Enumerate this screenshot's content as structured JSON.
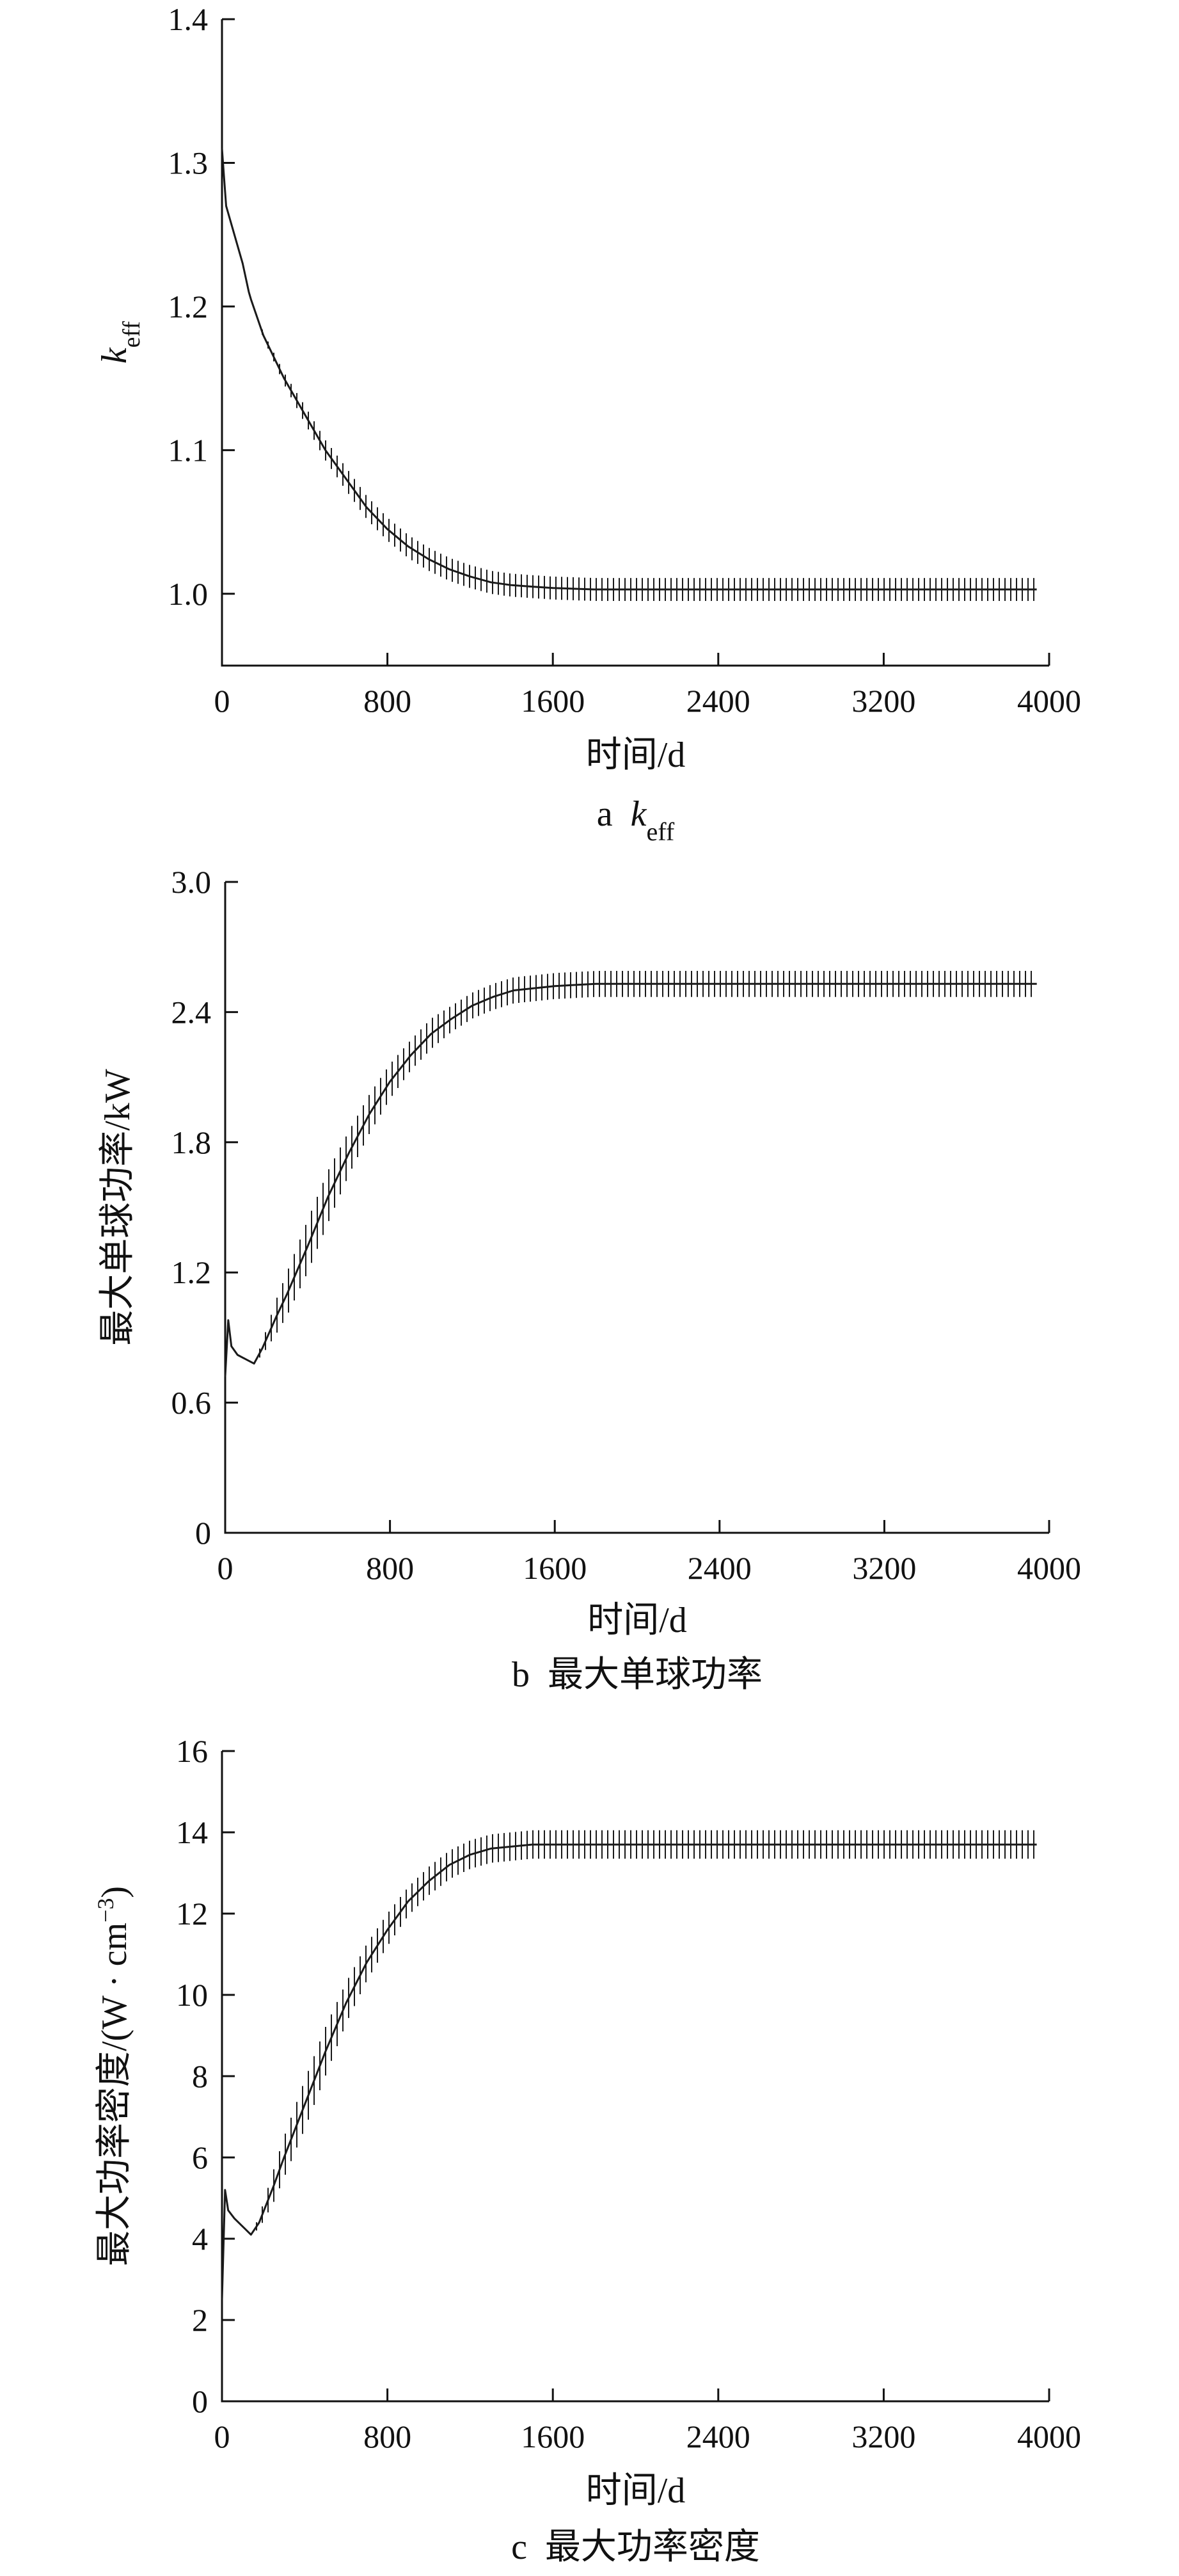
{
  "chart_data": [
    {
      "type": "line",
      "panel": "a",
      "caption_letter": "a",
      "caption_text": "k",
      "caption_sub": "eff",
      "ylabel_main": "k",
      "ylabel_sub": "eff",
      "ylabel_suffix": "",
      "ylabel_sup": "",
      "ylabel_end": "",
      "xlabel": "时间/d",
      "xlim": [
        0,
        4000
      ],
      "ylim": [
        0.95,
        1.4
      ],
      "xticks": [
        0,
        800,
        1600,
        2400,
        3200,
        4000
      ],
      "yticks": [
        1.0,
        1.1,
        1.2,
        1.3,
        1.4
      ],
      "ytick_labels": [
        "1.0",
        "1.1",
        "1.2",
        "1.3",
        "1.4"
      ],
      "xtick_labels": [
        "0",
        "800",
        "1600",
        "2400",
        "3200",
        "4000"
      ],
      "series": [
        {
          "x": [
            0,
            10,
            20,
            60,
            100,
            130,
            140,
            200,
            300,
            400,
            500,
            600,
            700,
            800,
            900,
            1000,
            1100,
            1200,
            1300,
            1400,
            1500,
            1600,
            1800,
            2000,
            2400,
            2800,
            3200,
            3600,
            3940
          ],
          "y": [
            1.31,
            1.29,
            1.27,
            1.25,
            1.23,
            1.21,
            1.205,
            1.18,
            1.15,
            1.125,
            1.1,
            1.08,
            1.06,
            1.045,
            1.033,
            1.024,
            1.017,
            1.012,
            1.008,
            1.006,
            1.005,
            1.004,
            1.003,
            1.003,
            1.003,
            1.003,
            1.003,
            1.003,
            1.003
          ],
          "band": [
            0,
            0,
            0,
            0,
            0,
            0,
            0,
            0.002,
            0.004,
            0.006,
            0.007,
            0.008,
            0.008,
            0.008,
            0.008,
            0.008,
            0.008,
            0.008,
            0.008,
            0.008,
            0.008,
            0.008,
            0.008,
            0.008,
            0.008,
            0.008,
            0.008,
            0.008,
            0.008
          ]
        }
      ]
    },
    {
      "type": "line",
      "panel": "b",
      "caption_letter": "b",
      "caption_text": "最大单球功率",
      "caption_sub": "",
      "ylabel_main": "最大单球功率/kW",
      "ylabel_sub": "",
      "ylabel_suffix": "",
      "ylabel_sup": "",
      "ylabel_end": "",
      "xlabel": "时间/d",
      "xlim": [
        0,
        4000
      ],
      "ylim": [
        0,
        3.0
      ],
      "xticks": [
        0,
        800,
        1600,
        2400,
        3200,
        4000
      ],
      "yticks": [
        0,
        0.6,
        1.2,
        1.8,
        2.4,
        3.0
      ],
      "ytick_labels": [
        "0",
        "0.6",
        "1.2",
        "1.8",
        "2.4",
        "3.0"
      ],
      "xtick_labels": [
        "0",
        "800",
        "1600",
        "2400",
        "3200",
        "4000"
      ],
      "series": [
        {
          "x": [
            0,
            15,
            30,
            60,
            100,
            140,
            180,
            250,
            300,
            400,
            500,
            600,
            700,
            800,
            900,
            1000,
            1100,
            1200,
            1300,
            1400,
            1500,
            1600,
            1800,
            2000,
            2400,
            2800,
            3200,
            3600,
            3940
          ],
          "y": [
            0.72,
            0.98,
            0.86,
            0.82,
            0.8,
            0.78,
            0.85,
            1.0,
            1.1,
            1.32,
            1.55,
            1.75,
            1.93,
            2.08,
            2.2,
            2.3,
            2.37,
            2.43,
            2.47,
            2.5,
            2.51,
            2.52,
            2.53,
            2.53,
            2.53,
            2.53,
            2.53,
            2.53,
            2.53
          ],
          "band": [
            0,
            0,
            0,
            0,
            0,
            0,
            0.03,
            0.08,
            0.1,
            0.12,
            0.12,
            0.1,
            0.09,
            0.08,
            0.07,
            0.07,
            0.06,
            0.06,
            0.06,
            0.06,
            0.06,
            0.06,
            0.06,
            0.06,
            0.06,
            0.06,
            0.06,
            0.06,
            0.06
          ]
        }
      ]
    },
    {
      "type": "line",
      "panel": "c",
      "caption_letter": "c",
      "caption_text": "最大功率密度",
      "caption_sub": "",
      "ylabel_main": "最大功率密度/(W",
      "ylabel_sub": "",
      "ylabel_suffix": " · cm",
      "ylabel_sup": "−3",
      "ylabel_end": ")",
      "xlabel": "时间/d",
      "xlim": [
        0,
        4000
      ],
      "ylim": [
        0,
        16
      ],
      "xticks": [
        0,
        800,
        1600,
        2400,
        3200,
        4000
      ],
      "yticks": [
        0,
        2,
        4,
        6,
        8,
        10,
        12,
        14,
        16
      ],
      "ytick_labels": [
        "0",
        "2",
        "4",
        "6",
        "8",
        "10",
        "12",
        "14",
        "16"
      ],
      "xtick_labels": [
        "0",
        "800",
        "1600",
        "2400",
        "3200",
        "4000"
      ],
      "series": [
        {
          "x": [
            0,
            15,
            30,
            60,
            100,
            140,
            180,
            250,
            300,
            400,
            500,
            600,
            700,
            800,
            900,
            1000,
            1100,
            1200,
            1300,
            1400,
            1500,
            1600,
            1800,
            2000,
            2400,
            2800,
            3200,
            3600,
            3940
          ],
          "y": [
            2.5,
            5.2,
            4.7,
            4.5,
            4.3,
            4.1,
            4.4,
            5.3,
            6.0,
            7.3,
            8.6,
            9.8,
            10.8,
            11.6,
            12.3,
            12.8,
            13.2,
            13.45,
            13.6,
            13.65,
            13.7,
            13.7,
            13.7,
            13.7,
            13.7,
            13.7,
            13.7,
            13.7,
            13.7
          ],
          "band": [
            0,
            0,
            0,
            0,
            0,
            0,
            0.15,
            0.4,
            0.5,
            0.6,
            0.6,
            0.5,
            0.45,
            0.4,
            0.35,
            0.35,
            0.35,
            0.35,
            0.35,
            0.35,
            0.35,
            0.35,
            0.35,
            0.35,
            0.35,
            0.35,
            0.35,
            0.35,
            0.35
          ]
        }
      ]
    }
  ]
}
